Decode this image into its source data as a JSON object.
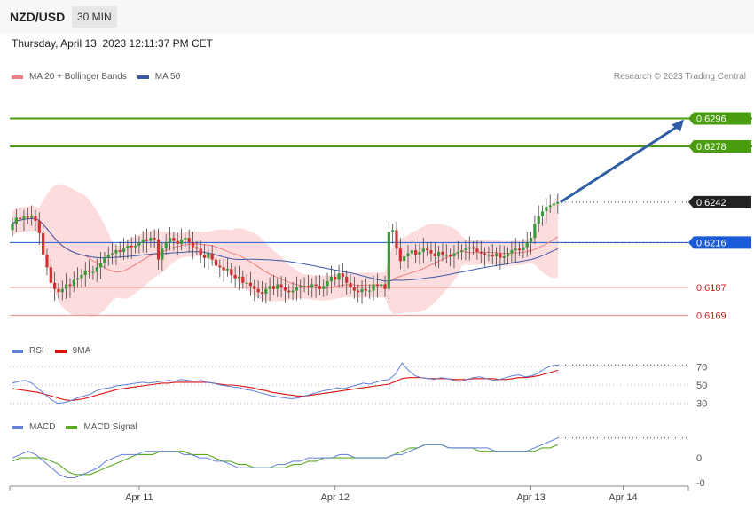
{
  "header": {
    "symbol": "NZD/USD",
    "timeframe": "30 MIN",
    "timestamp": "Thursday, April 13, 2023 12:11:37 PM CET"
  },
  "credit": "Research © 2023 Trading Central",
  "colors": {
    "bull": "#3a9a3a",
    "bear": "#d03030",
    "ma20": "#f08080",
    "ma50": "#3a5aa8",
    "band": "#fcd6d6",
    "target": "#4a9d0e",
    "pivot": "#1a5ad6",
    "support": "#ef9a9a",
    "last": "#222222",
    "arrow": "#2f5ea4",
    "rsi": "#5f7fd8",
    "rsi_ma": "#dd1111",
    "macd": "#5f7fd8",
    "macd_signal": "#5aaa20"
  },
  "chart_data": [
    {
      "type": "candlestick",
      "legend": [
        {
          "label": "MA 20 + Bollinger Bands",
          "color": "#f08080"
        },
        {
          "label": "MA 50",
          "color": "#3a5aa8"
        }
      ],
      "x_labels": [
        "Apr 11",
        "Apr 12",
        "Apr 13",
        "Apr 14"
      ],
      "x_label_bars": [
        33,
        84,
        135,
        159
      ],
      "ylim": [
        0.6155,
        0.6318
      ],
      "closes": [
        0.6228,
        0.6232,
        0.6231,
        0.6233,
        0.6232,
        0.6233,
        0.623,
        0.6222,
        0.6208,
        0.62,
        0.619,
        0.6186,
        0.6184,
        0.6186,
        0.6189,
        0.6188,
        0.6192,
        0.6193,
        0.6195,
        0.6198,
        0.6197,
        0.6197,
        0.62,
        0.6203,
        0.6206,
        0.6208,
        0.6209,
        0.6211,
        0.621,
        0.6212,
        0.6214,
        0.6213,
        0.6214,
        0.6216,
        0.6218,
        0.6217,
        0.6219,
        0.6218,
        0.6205,
        0.6212,
        0.6216,
        0.6219,
        0.6217,
        0.6215,
        0.6218,
        0.6219,
        0.6216,
        0.6213,
        0.6212,
        0.6208,
        0.6206,
        0.6209,
        0.6205,
        0.6201,
        0.62,
        0.6198,
        0.6199,
        0.6195,
        0.6193,
        0.6194,
        0.619,
        0.619,
        0.6188,
        0.6186,
        0.6184,
        0.6183,
        0.6186,
        0.6188,
        0.6186,
        0.6189,
        0.6187,
        0.6185,
        0.6184,
        0.6185,
        0.6187,
        0.6188,
        0.6188,
        0.6187,
        0.6189,
        0.6188,
        0.6186,
        0.6188,
        0.6191,
        0.6194,
        0.6192,
        0.6196,
        0.6194,
        0.619,
        0.6187,
        0.6185,
        0.6184,
        0.6186,
        0.6185,
        0.6185,
        0.6189,
        0.6188,
        0.6189,
        0.6186,
        0.6223,
        0.6224,
        0.6212,
        0.6204,
        0.6207,
        0.6209,
        0.6211,
        0.6208,
        0.621,
        0.6212,
        0.6211,
        0.6209,
        0.6207,
        0.621,
        0.6208,
        0.6208,
        0.6207,
        0.6209,
        0.621,
        0.6211,
        0.6212,
        0.6213,
        0.6212,
        0.621,
        0.6209,
        0.6208,
        0.6208,
        0.6207,
        0.6209,
        0.6206,
        0.6207,
        0.6209,
        0.6211,
        0.6212,
        0.6211,
        0.6213,
        0.6216,
        0.6219,
        0.6228,
        0.6233,
        0.6236,
        0.6239,
        0.624,
        0.6241,
        0.6242
      ],
      "levels": [
        {
          "value": "0.6296",
          "kind": "target"
        },
        {
          "value": "0.6278",
          "kind": "target"
        },
        {
          "value": "0.6242",
          "kind": "last"
        },
        {
          "value": "0.6216",
          "kind": "pivot"
        },
        {
          "value": "0.6187",
          "kind": "support"
        },
        {
          "value": "0.6169",
          "kind": "support"
        }
      ],
      "projection": {
        "from": 0.6242,
        "to": 0.6296
      }
    },
    {
      "type": "line",
      "legend": [
        {
          "label": "RSI",
          "color": "#5f7fd8"
        },
        {
          "label": "9MA",
          "color": "#dd1111"
        }
      ],
      "ylim": [
        22,
        78
      ],
      "y_ticks": [
        "70",
        "50",
        "30"
      ],
      "rsi": [
        52,
        54,
        55,
        52,
        46,
        40,
        34,
        30,
        31,
        33,
        36,
        38,
        40,
        44,
        46,
        47,
        49,
        50,
        51,
        52,
        53,
        52,
        53,
        54,
        55,
        54,
        56,
        55,
        54,
        55,
        53,
        52,
        50,
        49,
        48,
        47,
        45,
        44,
        42,
        40,
        38,
        37,
        36,
        35,
        36,
        38,
        40,
        42,
        44,
        45,
        47,
        46,
        48,
        50,
        52,
        51,
        53,
        55,
        56,
        62,
        74,
        66,
        60,
        58,
        57,
        56,
        58,
        57,
        55,
        54,
        56,
        58,
        59,
        57,
        55,
        56,
        58,
        60,
        61,
        59,
        60,
        63,
        68,
        71,
        72
      ],
      "ma": [
        46,
        45,
        44,
        43,
        42,
        40,
        38,
        36,
        34,
        33,
        34,
        35,
        37,
        39,
        41,
        43,
        45,
        46,
        47,
        48,
        49,
        50,
        51,
        52,
        52,
        53,
        53,
        53,
        53,
        53,
        53,
        52,
        51,
        50,
        50,
        49,
        48,
        47,
        45,
        44,
        42,
        41,
        40,
        39,
        38,
        38,
        39,
        40,
        41,
        42,
        43,
        44,
        45,
        46,
        47,
        48,
        49,
        50,
        51,
        54,
        57,
        58,
        58,
        58,
        57,
        57,
        57,
        57,
        56,
        56,
        56,
        57,
        57,
        57,
        57,
        56,
        56,
        57,
        58,
        58,
        59,
        60,
        62,
        64,
        66
      ]
    },
    {
      "type": "line",
      "legend": [
        {
          "label": "MACD",
          "color": "#5f7fd8"
        },
        {
          "label": "MACD Signal",
          "color": "#5aaa20"
        }
      ],
      "ylim": [
        -0.0008,
        0.0007
      ],
      "y_ticks": [
        "0",
        "-0"
      ],
      "macd": [
        0.0,
        0.0001,
        0.0002,
        0.0001,
        -0.0001,
        -0.0003,
        -0.0005,
        -0.0006,
        -0.0006,
        -0.0005,
        -0.0004,
        -0.0003,
        -0.0001,
        0.0,
        0.0001,
        0.0001,
        0.0001,
        0.0002,
        0.0002,
        0.0002,
        0.0002,
        0.0002,
        0.0001,
        0.0001,
        0.0,
        0.0,
        -0.0001,
        -0.0001,
        -0.0002,
        -0.0003,
        -0.0003,
        -0.0003,
        -0.0003,
        -0.0003,
        -0.0002,
        -0.0002,
        -0.0001,
        -0.0001,
        0.0,
        0.0,
        0.0,
        0.0,
        0.0001,
        0.0001,
        0.0,
        0.0,
        0.0,
        0.0,
        0.0,
        0.0001,
        0.0001,
        0.0002,
        0.0003,
        0.0004,
        0.0004,
        0.0004,
        0.0003,
        0.0003,
        0.0003,
        0.0003,
        0.0003,
        0.0003,
        0.0002,
        0.0002,
        0.0002,
        0.0002,
        0.0002,
        0.0003,
        0.0004,
        0.0005,
        0.0006
      ],
      "signal": [
        -0.0001,
        0.0,
        0.0,
        0.0,
        0.0,
        -0.0001,
        -0.0002,
        -0.0004,
        -0.0005,
        -0.0005,
        -0.0005,
        -0.0004,
        -0.0003,
        -0.0002,
        -0.0001,
        0.0,
        0.0001,
        0.0001,
        0.0001,
        0.0002,
        0.0002,
        0.0002,
        0.0002,
        0.0001,
        0.0001,
        0.0001,
        0.0,
        -0.0001,
        -0.0001,
        -0.0002,
        -0.0002,
        -0.0003,
        -0.0003,
        -0.0003,
        -0.0003,
        -0.0003,
        -0.0002,
        -0.0002,
        -0.0001,
        -0.0001,
        0.0,
        0.0,
        0.0,
        0.0,
        0.0,
        0.0,
        0.0,
        0.0,
        0.0,
        0.0001,
        0.0002,
        0.0003,
        0.0003,
        0.0004,
        0.0004,
        0.0004,
        0.0003,
        0.0003,
        0.0003,
        0.0003,
        0.0002,
        0.0002,
        0.0002,
        0.0002,
        0.0002,
        0.0002,
        0.0002,
        0.0002,
        0.0003,
        0.0003,
        0.0004
      ]
    }
  ]
}
